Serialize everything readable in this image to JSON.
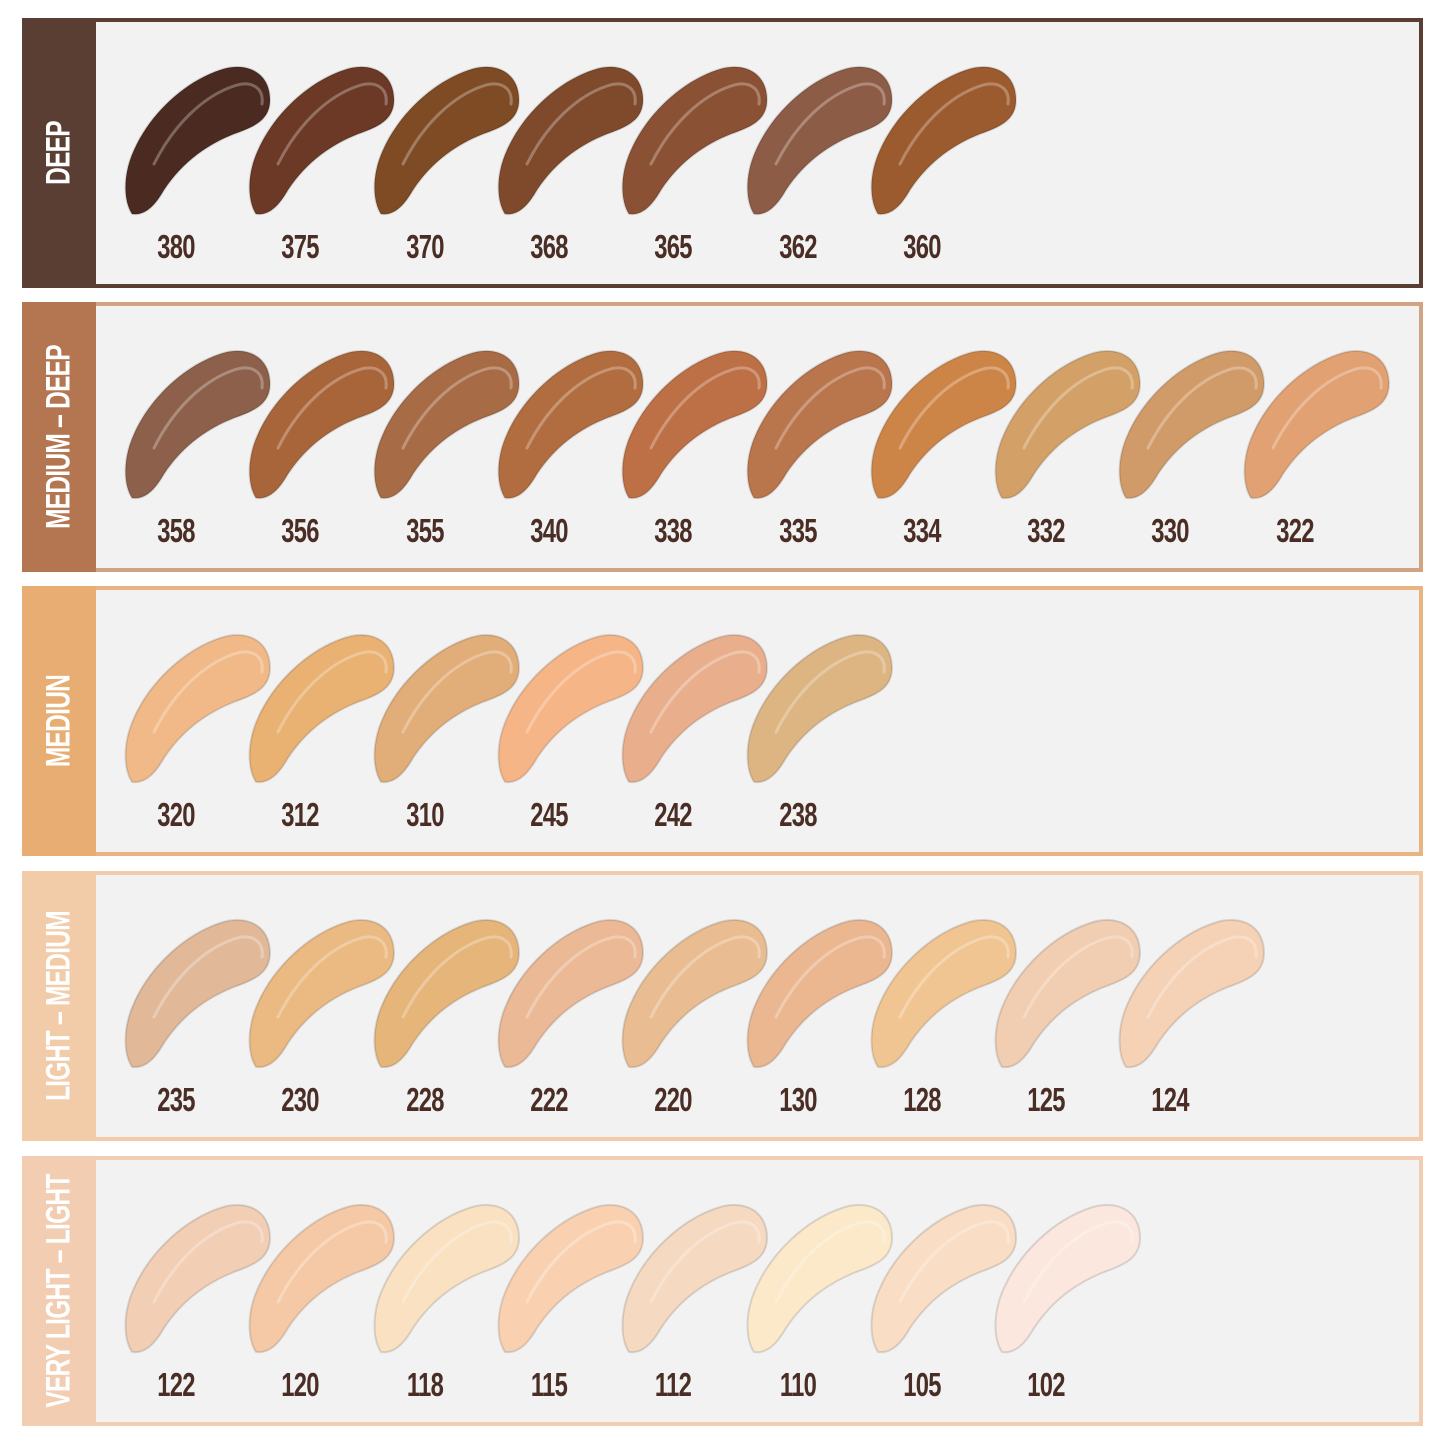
{
  "groups": [
    {
      "label": "DEEP",
      "color": "#5a3d33",
      "border": "#5a3d33",
      "shades": [
        {
          "code": "380",
          "color": "#4b2b21"
        },
        {
          "code": "375",
          "color": "#6b3926"
        },
        {
          "code": "370",
          "color": "#7e4b24"
        },
        {
          "code": "368",
          "color": "#7f4a2b"
        },
        {
          "code": "365",
          "color": "#8b5134"
        },
        {
          "code": "362",
          "color": "#8c5c46"
        },
        {
          "code": "360",
          "color": "#9b5b2e"
        }
      ]
    },
    {
      "label": "MEDIUM – DEEP",
      "color": "#b37650",
      "border": "#d0a482",
      "shades": [
        {
          "code": "358",
          "color": "#8c604a"
        },
        {
          "code": "356",
          "color": "#a9653a"
        },
        {
          "code": "355",
          "color": "#a76b45"
        },
        {
          "code": "340",
          "color": "#b16d3f"
        },
        {
          "code": "338",
          "color": "#bd6f45"
        },
        {
          "code": "335",
          "color": "#b9754b"
        },
        {
          "code": "334",
          "color": "#cd8547"
        },
        {
          "code": "332",
          "color": "#d3a168"
        },
        {
          "code": "330",
          "color": "#d19b69"
        },
        {
          "code": "322",
          "color": "#e1a172"
        }
      ]
    },
    {
      "label": "MEDIUN",
      "color": "#e8ad72",
      "border": "#e8b582",
      "shades": [
        {
          "code": "320",
          "color": "#f0b987"
        },
        {
          "code": "312",
          "color": "#e9b172"
        },
        {
          "code": "310",
          "color": "#e1ad79"
        },
        {
          "code": "245",
          "color": "#f5b587"
        },
        {
          "code": "242",
          "color": "#e9af8d"
        },
        {
          "code": "238",
          "color": "#ddb582"
        }
      ]
    },
    {
      "label": "LIGHT – MEDIUM",
      "color": "#f2cba8",
      "border": "#f2cba8",
      "shades": [
        {
          "code": "235",
          "color": "#e1b999"
        },
        {
          "code": "230",
          "color": "#ebb982"
        },
        {
          "code": "228",
          "color": "#e5b57a"
        },
        {
          "code": "222",
          "color": "#ebb995"
        },
        {
          "code": "220",
          "color": "#e9bd91"
        },
        {
          "code": "130",
          "color": "#ebb791"
        },
        {
          "code": "128",
          "color": "#f1c592"
        },
        {
          "code": "125",
          "color": "#f1cdb1"
        },
        {
          "code": "124",
          "color": "#f5d1b5"
        }
      ]
    },
    {
      "label": "VERY LIGHT – LIGHT",
      "color": "#f3cdb2",
      "border": "#f3cdb2",
      "shades": [
        {
          "code": "122",
          "color": "#f2ceb5"
        },
        {
          "code": "120",
          "color": "#f5c9a5"
        },
        {
          "code": "118",
          "color": "#f9e1c1"
        },
        {
          "code": "115",
          "color": "#f9d1b1"
        },
        {
          "code": "112",
          "color": "#f5d9c1"
        },
        {
          "code": "110",
          "color": "#fbe9c9"
        },
        {
          "code": "105",
          "color": "#f9ddc5"
        },
        {
          "code": "102",
          "color": "#fbe7dd"
        }
      ]
    }
  ]
}
